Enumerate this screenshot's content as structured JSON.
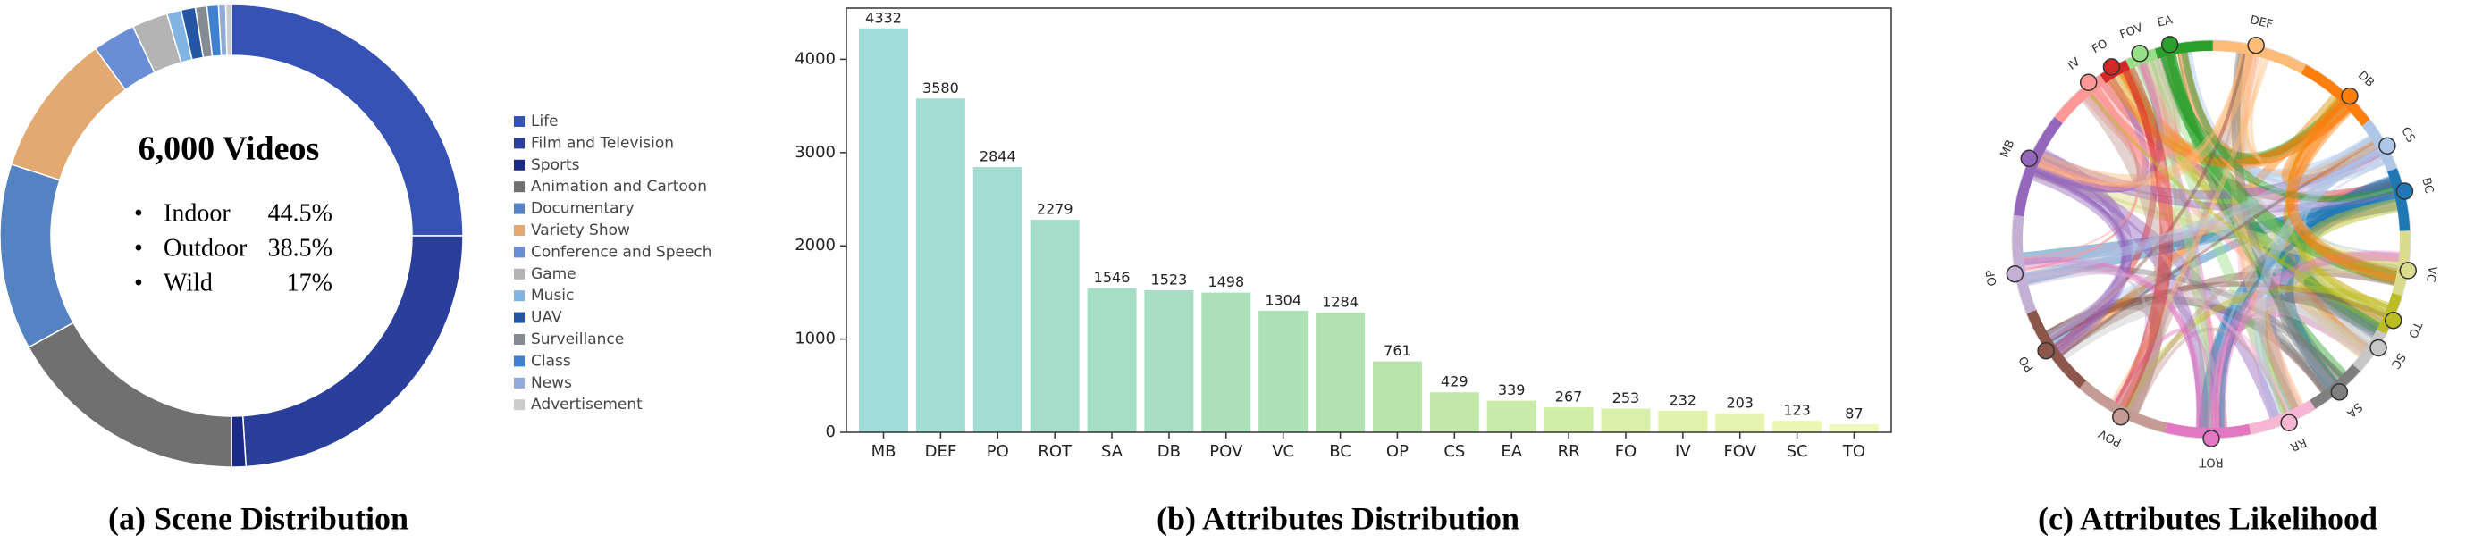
{
  "chart_data": [
    {
      "type": "pie",
      "title": "6,000 Videos",
      "center_items": [
        {
          "name": "Indoor",
          "text": "44.5%"
        },
        {
          "name": "Outdoor",
          "text": "38.5%"
        },
        {
          "name": "Wild",
          "text": "17%"
        }
      ],
      "caption": "(a) Scene Distribution",
      "categories": [
        "Life",
        "Film and Television",
        "Sports",
        "Animation and Cartoon",
        "Documentary",
        "Variety Show",
        "Conference and Speech",
        "Game",
        "Music",
        "UAV",
        "Surveillance",
        "Class",
        "News",
        "Advertisement"
      ],
      "values": [
        25,
        24,
        1,
        17,
        13,
        10,
        3,
        2.5,
        1,
        1,
        0.8,
        0.8,
        0.5,
        0.4
      ],
      "colors": [
        "#3552b4",
        "#2a3f9a",
        "#1b2a86",
        "#707070",
        "#5482c2",
        "#e2aa72",
        "#6a8ed6",
        "#b4b4b4",
        "#82b4e2",
        "#2456a4",
        "#848b94",
        "#3f80cf",
        "#92aad8",
        "#cccccc"
      ]
    },
    {
      "type": "bar",
      "caption": "(b) Attributes Distribution",
      "categories": [
        "MB",
        "DEF",
        "PO",
        "ROT",
        "SA",
        "DB",
        "POV",
        "VC",
        "BC",
        "OP",
        "CS",
        "EA",
        "RR",
        "FO",
        "IV",
        "FOV",
        "SC",
        "TO"
      ],
      "values": [
        4332,
        3580,
        2844,
        2279,
        1546,
        1523,
        1498,
        1304,
        1284,
        761,
        429,
        339,
        267,
        253,
        232,
        203,
        123,
        87
      ],
      "colors": [
        "#a1dcd9",
        "#a2dcd4",
        "#a3ddcf",
        "#a4ddca",
        "#a6dec5",
        "#a8dfc0",
        "#abe0bb",
        "#aee1b6",
        "#b2e2b1",
        "#b9e5ac",
        "#c1e8aa",
        "#c9eba9",
        "#d1eea9",
        "#d9f0aa",
        "#e0f2ac",
        "#e6f4b0",
        "#ecf6b5",
        "#f1f8bd"
      ],
      "ylim": [
        0,
        4550
      ],
      "yticks": [
        0,
        1000,
        2000,
        3000,
        4000
      ]
    },
    {
      "type": "chord",
      "caption": "(c) Attributes Likelihood",
      "categories": [
        "EA",
        "DEF",
        "DB",
        "CS",
        "BC",
        "VC",
        "TO",
        "SC",
        "SA",
        "RR",
        "ROT",
        "POV",
        "PO",
        "OP",
        "MB",
        "IV",
        "FO",
        "FOV"
      ],
      "colors": [
        "#2ca02c",
        "#ffbb78",
        "#ff7f0e",
        "#aec7e8",
        "#1f77b4",
        "#dbdb8d",
        "#bcbd22",
        "#c7c7c7",
        "#7f7f7f",
        "#f7b6d2",
        "#e377c2",
        "#c49c94",
        "#8c564b",
        "#c5b0d5",
        "#9467bd",
        "#ff9896",
        "#d62728",
        "#98df8a"
      ]
    }
  ]
}
